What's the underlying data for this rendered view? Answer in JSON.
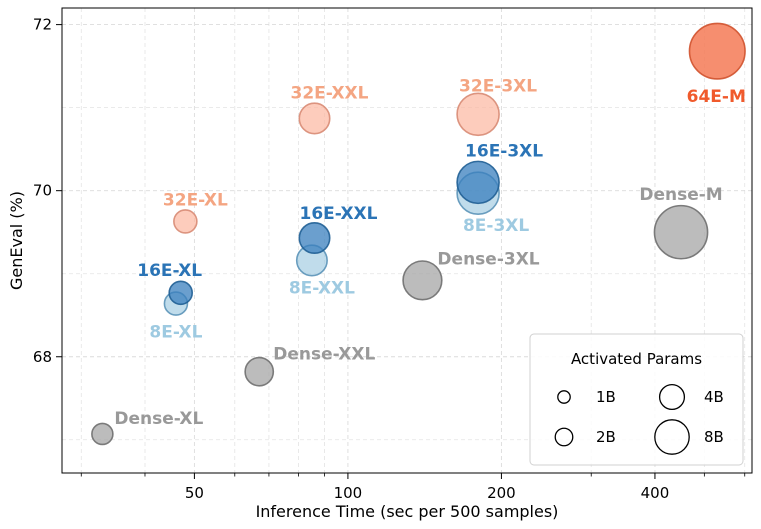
{
  "chart_data": {
    "type": "scatter",
    "title": "",
    "xlabel": "Inference Time (sec per 500 samples)",
    "ylabel": "GenEval (%)",
    "x_scale": "log",
    "xlim": [
      27.5,
      620
    ],
    "ylim": [
      66.6,
      72.2
    ],
    "x_ticks": [
      {
        "value": 50,
        "label": "50"
      },
      {
        "value": 100,
        "label": "100"
      },
      {
        "value": 200,
        "label": "200"
      },
      {
        "value": 400,
        "label": "400"
      }
    ],
    "y_ticks": [
      {
        "value": 68,
        "label": "68"
      },
      {
        "value": 70,
        "label": "70"
      },
      {
        "value": 72,
        "label": "72"
      }
    ],
    "grid": true,
    "colors": {
      "dense": "#a6a6a6",
      "dense_text": "#999999",
      "e8": "#9ecae1",
      "e8_text": "#9ecae1",
      "e16": "#3a7fbd",
      "e16_text": "#2b74b6",
      "e32": "#fcb79f",
      "e32_text": "#f4a582",
      "e64": "#f47a56",
      "e64_text": "#f05a2c"
    },
    "points": [
      {
        "name": "Dense-XL",
        "x": 33,
        "y": 67.07,
        "params_b": 1.0,
        "group": "dense"
      },
      {
        "name": "Dense-XXL",
        "x": 67,
        "y": 67.82,
        "params_b": 1.8,
        "group": "dense"
      },
      {
        "name": "Dense-3XL",
        "x": 140,
        "y": 68.92,
        "params_b": 3.4,
        "group": "dense"
      },
      {
        "name": "Dense-M",
        "x": 450,
        "y": 69.5,
        "params_b": 6.4,
        "group": "dense"
      },
      {
        "name": "8E-XL",
        "x": 46,
        "y": 68.64,
        "params_b": 1.2,
        "group": "e8"
      },
      {
        "name": "8E-XXL",
        "x": 85,
        "y": 69.16,
        "params_b": 2.1,
        "group": "e8"
      },
      {
        "name": "8E-3XL",
        "x": 180,
        "y": 69.97,
        "params_b": 4.0,
        "group": "e8"
      },
      {
        "name": "16E-XL",
        "x": 47,
        "y": 68.77,
        "params_b": 1.2,
        "group": "e16"
      },
      {
        "name": "16E-XXL",
        "x": 86,
        "y": 69.43,
        "params_b": 2.1,
        "group": "e16"
      },
      {
        "name": "16E-3XL",
        "x": 180,
        "y": 70.1,
        "params_b": 4.0,
        "group": "e16"
      },
      {
        "name": "32E-XL",
        "x": 48,
        "y": 69.63,
        "params_b": 1.2,
        "group": "e32"
      },
      {
        "name": "32E-XXL",
        "x": 86,
        "y": 70.87,
        "params_b": 2.1,
        "group": "e32"
      },
      {
        "name": "32E-3XL",
        "x": 180,
        "y": 70.92,
        "params_b": 4.0,
        "group": "e32"
      },
      {
        "name": "64E-M",
        "x": 530,
        "y": 71.68,
        "params_b": 7.0,
        "group": "e64"
      }
    ],
    "legend": {
      "title": "Activated Params",
      "position": "lower-right",
      "entries": [
        {
          "label": "1B",
          "params_b": 1
        },
        {
          "label": "2B",
          "params_b": 2
        },
        {
          "label": "4B",
          "params_b": 4
        },
        {
          "label": "8B",
          "params_b": 8
        }
      ]
    }
  }
}
